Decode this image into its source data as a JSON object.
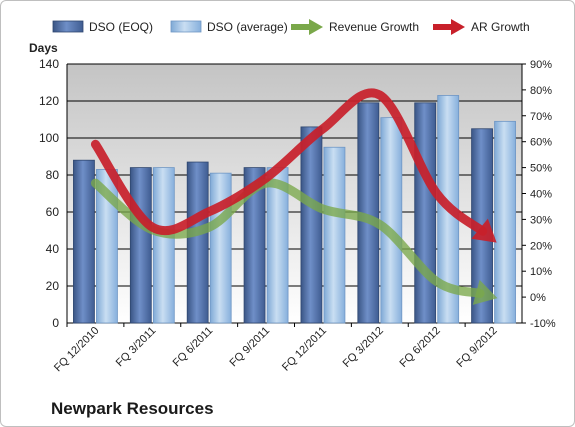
{
  "chart_data": {
    "type": "bar+line",
    "title": "Newpark Resources",
    "ylabel_left": "Days",
    "categories": [
      "FQ 12/2010",
      "FQ 3/2011",
      "FQ 6/2011",
      "FQ 9/2011",
      "FQ 12/2011",
      "FQ 3/2012",
      "FQ 6/2012",
      "FQ 9/2012"
    ],
    "ylim_left": [
      0,
      140
    ],
    "yticks_left": [
      "0",
      "20",
      "40",
      "60",
      "80",
      "100",
      "120",
      "140"
    ],
    "ylim_right": [
      -0.1,
      0.9
    ],
    "yticks_right": [
      "-10%",
      "0%",
      "10%",
      "20%",
      "30%",
      "40%",
      "50%",
      "60%",
      "70%",
      "80%",
      "90%"
    ],
    "grid": true,
    "legend_position": "top",
    "bar_series": [
      {
        "name": "DSO (EOQ)",
        "axis": "left",
        "color": "#4f6fa8",
        "values": [
          88,
          84,
          87,
          84,
          106,
          119,
          119,
          105
        ]
      },
      {
        "name": "DSO (average)",
        "axis": "left",
        "color": "#9dc3e6",
        "values": [
          83,
          84,
          81,
          84,
          95,
          111,
          123,
          109
        ]
      }
    ],
    "line_series": [
      {
        "name": "Revenue Growth",
        "axis": "right",
        "color": "#7aa84a",
        "style": "arrow",
        "values": [
          0.44,
          0.26,
          0.27,
          0.44,
          0.34,
          0.28,
          0.06,
          0.0
        ]
      },
      {
        "name": "AR Growth",
        "axis": "right",
        "color": "#c8202a",
        "style": "arrow",
        "values": [
          0.59,
          0.27,
          0.33,
          0.46,
          0.65,
          0.78,
          0.4,
          0.22
        ]
      }
    ]
  }
}
